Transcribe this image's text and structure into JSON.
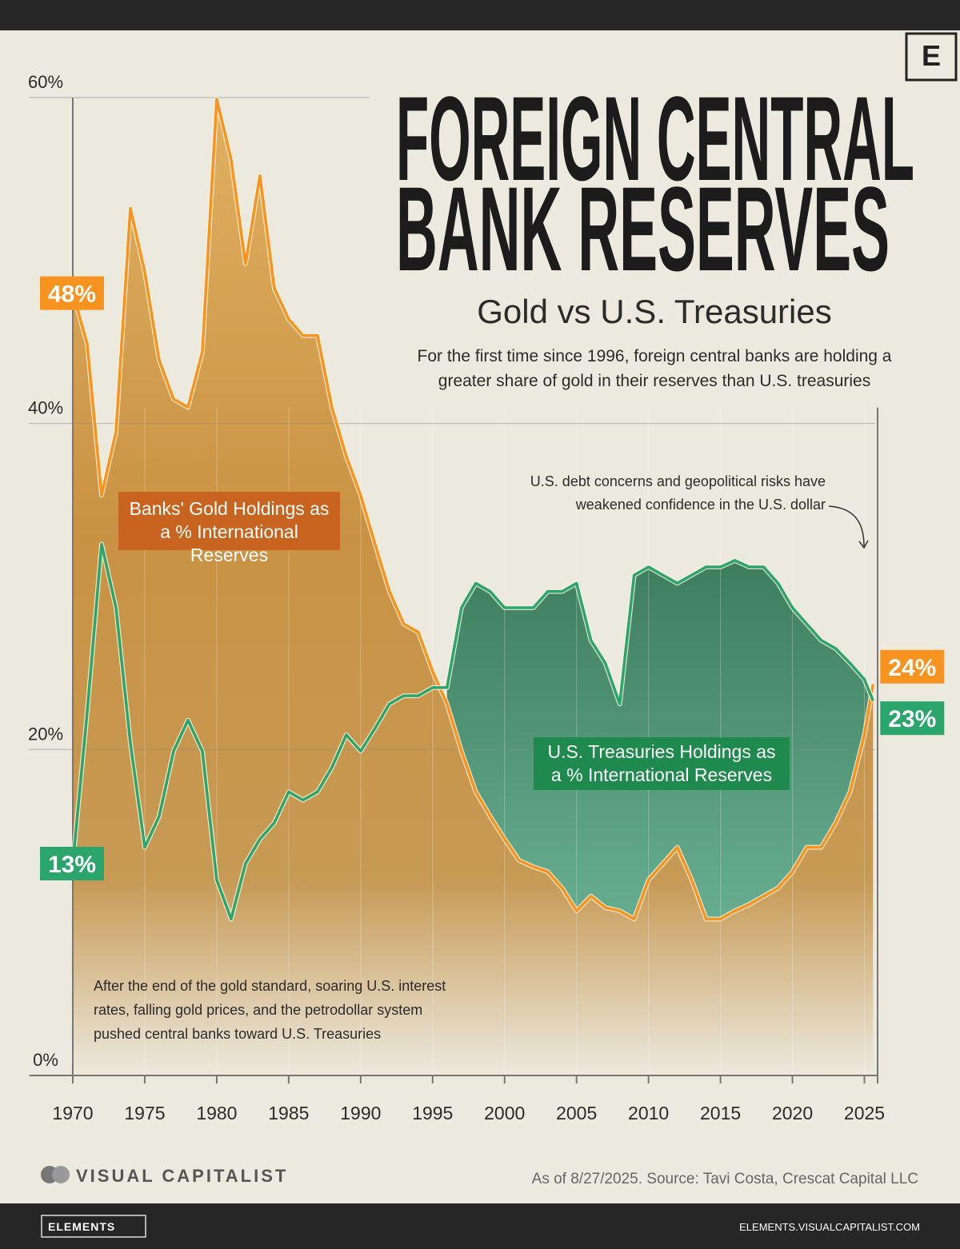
{
  "chart_data": {
    "type": "line",
    "title": [
      "FOREIGN CENTRAL",
      "BANK RESERVES"
    ],
    "subtitle": "Gold vs U.S. Treasuries",
    "description": "For the first time since 1996, foreign central banks are holding a greater share of gold in their reserves than U.S. treasuries",
    "annotations": [
      "U.S. debt concerns and geopolitical risks have weakened confidence in the U.S. dollar",
      "After the end of the gold standard, soaring U.S. interest rates, falling gold prices, and the petrodollar system pushed central banks toward U.S. Treasuries"
    ],
    "source": "As of 8/27/2025. Source: Tavi Costa, Crescat Capital LLC",
    "brand": "VISUAL CAPITALIST",
    "logo_mark": "E",
    "footer_left": "ELEMENTS",
    "footer_right": "ELEMENTS.VISUALCAPITALIST.COM",
    "x": [
      1970,
      1971,
      1972,
      1973,
      1974,
      1975,
      1976,
      1977,
      1978,
      1979,
      1980,
      1981,
      1982,
      1983,
      1984,
      1985,
      1986,
      1987,
      1988,
      1989,
      1990,
      1991,
      1992,
      1993,
      1994,
      1995,
      1996,
      1997,
      1998,
      1999,
      2000,
      2001,
      2002,
      2003,
      2004,
      2005,
      2006,
      2007,
      2008,
      2009,
      2010,
      2011,
      2012,
      2013,
      2014,
      2015,
      2016,
      2017,
      2018,
      2019,
      2020,
      2021,
      2022,
      2023,
      2024,
      2025,
      2025.6
    ],
    "series": [
      {
        "name": "Banks' Gold Holdings as a % International Reserves",
        "color": "#f7931e",
        "values": [
          48,
          44.9,
          35.6,
          39.5,
          53.2,
          49.3,
          43.9,
          41.5,
          41,
          44.4,
          59.9,
          56.2,
          49.8,
          55.2,
          48.3,
          46.4,
          45.4,
          45.4,
          41,
          38,
          35.6,
          32.6,
          29.7,
          27.7,
          27.2,
          24.8,
          22.8,
          19.9,
          17.4,
          15.9,
          14.5,
          13.2,
          12.8,
          12.5,
          11.5,
          10.1,
          11,
          10.3,
          10.1,
          9.6,
          12,
          13,
          14,
          12,
          9.6,
          9.6,
          10.1,
          10.5,
          11,
          11.5,
          12.5,
          14,
          14,
          15.5,
          17.4,
          20.9,
          24
        ],
        "value_labels": [
          "48%",
          null,
          null,
          null,
          null,
          null,
          null,
          null,
          null,
          null,
          null,
          null,
          null,
          null,
          null,
          null,
          null,
          null,
          null,
          null,
          null,
          null,
          null,
          null,
          null,
          null,
          null,
          null,
          null,
          null,
          null,
          null,
          null,
          null,
          null,
          null,
          null,
          null,
          null,
          null,
          null,
          null,
          null,
          null,
          null,
          null,
          null,
          null,
          null,
          null,
          null,
          null,
          null,
          null,
          null,
          null,
          "24%"
        ]
      },
      {
        "name": "U.S. Treasuries Holdings as a % International Reserves",
        "color": "#2aa56b",
        "values": [
          13,
          22.3,
          32.6,
          28.7,
          20.4,
          14,
          15.9,
          19.9,
          21.8,
          19.9,
          12,
          9.6,
          13,
          14.5,
          15.5,
          17.4,
          16.9,
          17.4,
          18.9,
          20.9,
          19.9,
          21.3,
          22.8,
          23.3,
          23.3,
          23.8,
          23.8,
          28.7,
          30.2,
          29.7,
          28.7,
          28.7,
          28.7,
          29.7,
          29.7,
          30.2,
          26.7,
          25.3,
          22.8,
          30.7,
          31.2,
          30.7,
          30.2,
          30.7,
          31.2,
          31.2,
          31.6,
          31.2,
          31.2,
          30.2,
          28.7,
          27.7,
          26.7,
          26.2,
          25.3,
          24.3,
          23
        ],
        "value_labels": [
          "13%",
          null,
          null,
          null,
          null,
          null,
          null,
          null,
          null,
          null,
          null,
          null,
          null,
          null,
          null,
          null,
          null,
          null,
          null,
          null,
          null,
          null,
          null,
          null,
          null,
          null,
          null,
          null,
          null,
          null,
          null,
          null,
          null,
          null,
          null,
          null,
          null,
          null,
          null,
          null,
          null,
          null,
          null,
          null,
          null,
          null,
          null,
          null,
          null,
          null,
          null,
          null,
          null,
          null,
          null,
          null,
          "23%"
        ]
      }
    ],
    "xlim": [
      1970,
      2025.75
    ],
    "xticks": [
      1970,
      1975,
      1980,
      1985,
      1990,
      1995,
      2000,
      2005,
      2010,
      2015,
      2020,
      2025
    ],
    "ylim": [
      0,
      60
    ],
    "yticks": [
      {
        "value": 0,
        "label": "0%"
      },
      {
        "value": 20,
        "label": "20%"
      },
      {
        "value": 40,
        "label": "40%"
      },
      {
        "value": 60,
        "label": "60%"
      }
    ],
    "grid": true
  }
}
